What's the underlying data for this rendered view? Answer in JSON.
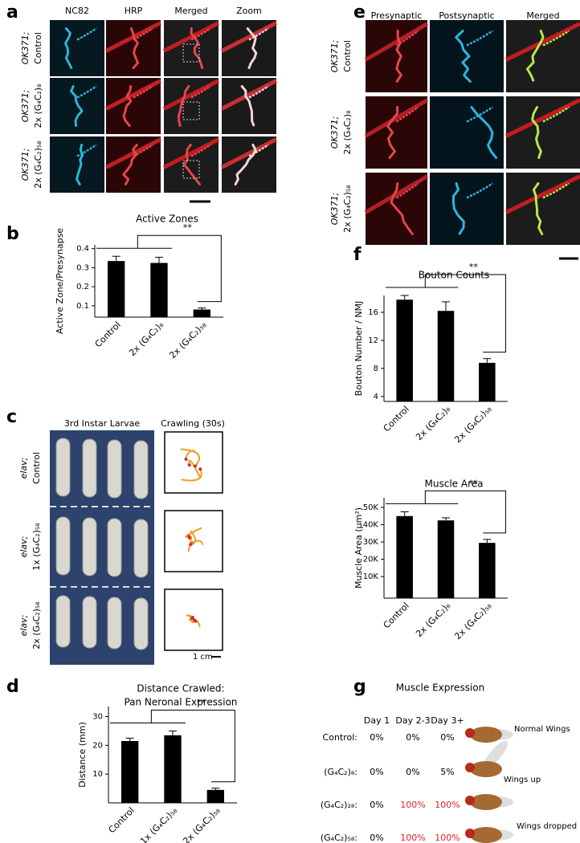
{
  "panel_labels": [
    "a",
    "b",
    "c",
    "d",
    "e",
    "f",
    "g"
  ],
  "panel_a": {
    "columns": [
      "NC82",
      "HRP",
      "Merged",
      "Zoom"
    ],
    "rows": [
      [
        "OK371;",
        "Control"
      ],
      [
        "OK371;",
        "2x (G₄C₂)₈"
      ],
      [
        "OK371;",
        "2x (G₄C₂)₅₈"
      ]
    ]
  },
  "panel_c": {
    "columns": [
      "3rd Instar Larvae",
      "Crawling (30s)"
    ],
    "rows": [
      [
        "elav;",
        "Control"
      ],
      [
        "elav;",
        "1x (G₄C₂)₅₈"
      ],
      [
        "elav;",
        "2x (G₄C₂)₅₈"
      ]
    ],
    "scale_label": "1 cm"
  },
  "panel_e": {
    "columns": [
      "Presynaptic",
      "Postsynaptic",
      "Merged"
    ],
    "rows": [
      [
        "OK371;",
        "Control"
      ],
      [
        "OK371;",
        "2x (G₄C₂)₈"
      ],
      [
        "OK371;",
        "2x (G₄C₂)₅₈"
      ]
    ]
  },
  "panel_g": {
    "title": "Muscle Expression",
    "columns": [
      "Day 1",
      "Day 2-3",
      "Day 3+"
    ],
    "rows": [
      {
        "label": "Control:",
        "cells": [
          {
            "text": "0%",
            "color": "#000000"
          },
          {
            "text": "0%",
            "color": "#000000"
          },
          {
            "text": "0%",
            "color": "#000000"
          }
        ],
        "note": "Normal Wings"
      },
      {
        "label": "(G₄C₂)₈:",
        "cells": [
          {
            "text": "0%",
            "color": "#000000"
          },
          {
            "text": "0%",
            "color": "#000000"
          },
          {
            "text": "5%",
            "color": "#000000"
          }
        ],
        "note": "Wings up"
      },
      {
        "label": "(G₄C₂)₂₈:",
        "cells": [
          {
            "text": "0%",
            "color": "#000000"
          },
          {
            "text": "100%",
            "color": "#e31e24"
          },
          {
            "text": "100%",
            "color": "#e31e24"
          }
        ]
      },
      {
        "label": "(G₄C₂)₅₈:",
        "cells": [
          {
            "text": "0%",
            "color": "#000000"
          },
          {
            "text": "100%",
            "color": "#e31e24"
          },
          {
            "text": "100%",
            "color": "#e31e24"
          }
        ],
        "note": "Wings dropped"
      }
    ]
  },
  "chart_data": [
    {
      "type": "bar",
      "title": "Active Zones",
      "y_label": "Active Zone/Presynapse",
      "categories": [
        "Control",
        "2x (G₄C₂)₈",
        "2x (G₄C₂)₅₈"
      ],
      "values": [
        0.335,
        0.325,
        0.08
      ],
      "errors": [
        0.025,
        0.03,
        0.008
      ],
      "color": "#000000",
      "ylim": [
        0.04,
        0.42
      ],
      "yticks": [
        0.1,
        0.2,
        0.3,
        0.4
      ],
      "significance": "**"
    },
    {
      "type": "bar",
      "title": "Distance Crawled:",
      "subtitle": "Pan Neronal Expression",
      "y_label": "Distance (mm)",
      "categories": [
        "Control",
        "1x (G₄C₂)₅₈",
        "2x (G₄C₂)₅₈"
      ],
      "values": [
        21.5,
        23.5,
        4.5
      ],
      "errors": [
        1,
        1.5,
        0.6
      ],
      "color": "#000000",
      "ylim": [
        0,
        33.5
      ],
      "yticks": [
        10,
        20,
        30
      ],
      "significance": "**"
    },
    {
      "type": "bar",
      "title": "Bouton Counts",
      "y_label": "Bouton Number / NMJ",
      "categories": [
        "Control",
        "2x (G₄C₂)₈",
        "2x (G₄C₂)₅₈"
      ],
      "values": [
        17.8,
        16.2,
        8.8
      ],
      "errors": [
        0.6,
        1.3,
        0.6
      ],
      "color": "#000000",
      "ylim": [
        3.3,
        18.4
      ],
      "yticks": [
        4,
        8,
        12,
        16
      ],
      "significance": "**"
    },
    {
      "type": "bar",
      "title": "Muscle Area",
      "y_label": "Muscle Area (µm²)",
      "categories": [
        "Control",
        "2x (G₄C₂)₈",
        "2x (G₄C₂)₅₈"
      ],
      "values": [
        45000,
        42500,
        29500
      ],
      "errors": [
        2500,
        1500,
        2000
      ],
      "color": "#000000",
      "ylim": [
        -2500,
        55600
      ],
      "yticks": [
        {
          "value": 10000,
          "label": "10K"
        },
        {
          "value": 20000,
          "label": "20K"
        },
        {
          "value": 30000,
          "label": "30K"
        },
        {
          "value": 40000,
          "label": "40K"
        },
        {
          "value": 50000,
          "label": "50K"
        }
      ],
      "significance": "**"
    }
  ]
}
